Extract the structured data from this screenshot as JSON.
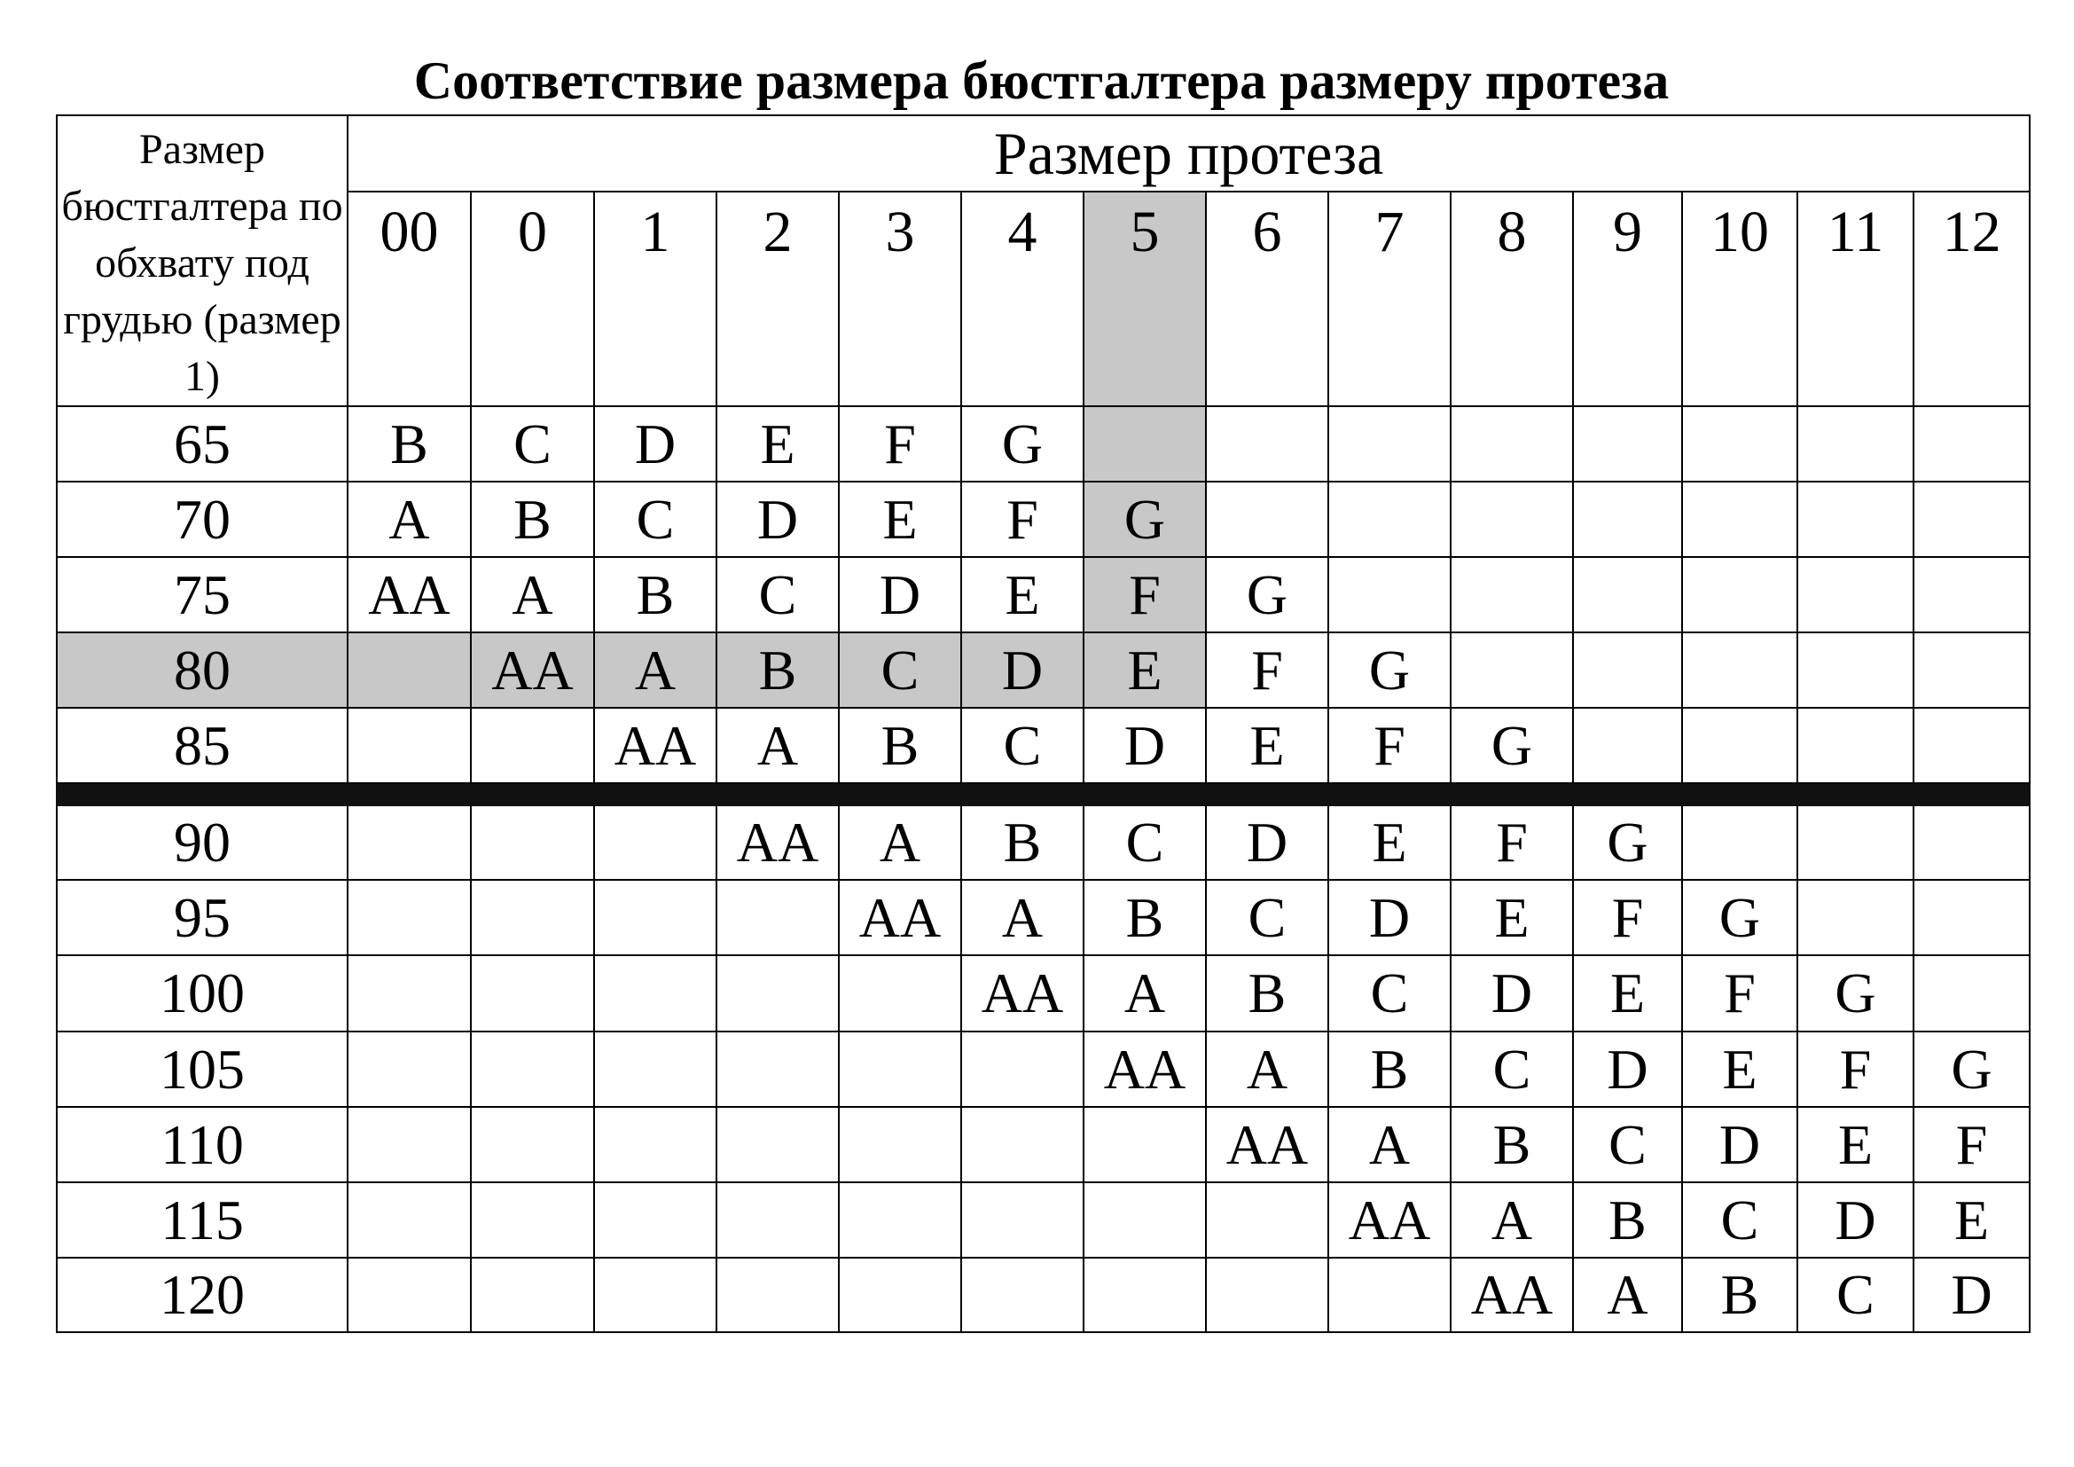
{
  "title": "Соответствие размера бюстгалтера размеру протеза",
  "table": {
    "corner_header": "Размер бюстгалтера по обхвату под грудью (размер 1)",
    "group_header": "Размер протеза",
    "columns": [
      "00",
      "0",
      "1",
      "2",
      "3",
      "4",
      "5",
      "6",
      "7",
      "8",
      "9",
      "10",
      "11",
      "12"
    ],
    "highlight_column": "5",
    "highlight_row": "80",
    "highlight_color": "#c8c8c8",
    "separator_after_row": "85",
    "rows": [
      {
        "size": "65",
        "cells": [
          "B",
          "C",
          "D",
          "E",
          "F",
          "G",
          "",
          "",
          "",
          "",
          "",
          "",
          "",
          ""
        ]
      },
      {
        "size": "70",
        "cells": [
          "A",
          "B",
          "C",
          "D",
          "E",
          "F",
          "G",
          "",
          "",
          "",
          "",
          "",
          "",
          ""
        ]
      },
      {
        "size": "75",
        "cells": [
          "AA",
          "A",
          "B",
          "C",
          "D",
          "E",
          "F",
          "G",
          "",
          "",
          "",
          "",
          "",
          ""
        ]
      },
      {
        "size": "80",
        "cells": [
          "",
          "AA",
          "A",
          "B",
          "C",
          "D",
          "E",
          "F",
          "G",
          "",
          "",
          "",
          "",
          ""
        ]
      },
      {
        "size": "85",
        "cells": [
          "",
          "",
          "AA",
          "A",
          "B",
          "C",
          "D",
          "E",
          "F",
          "G",
          "",
          "",
          "",
          ""
        ]
      },
      {
        "size": "90",
        "cells": [
          "",
          "",
          "",
          "AA",
          "A",
          "B",
          "C",
          "D",
          "E",
          "F",
          "G",
          "",
          "",
          ""
        ]
      },
      {
        "size": "95",
        "cells": [
          "",
          "",
          "",
          "",
          "AA",
          "A",
          "B",
          "C",
          "D",
          "E",
          "F",
          "G",
          "",
          ""
        ]
      },
      {
        "size": "100",
        "cells": [
          "",
          "",
          "",
          "",
          "",
          "AA",
          "A",
          "B",
          "C",
          "D",
          "E",
          "F",
          "G",
          ""
        ]
      },
      {
        "size": "105",
        "cells": [
          "",
          "",
          "",
          "",
          "",
          "",
          "AA",
          "A",
          "B",
          "C",
          "D",
          "E",
          "F",
          "G"
        ]
      },
      {
        "size": "110",
        "cells": [
          "",
          "",
          "",
          "",
          "",
          "",
          "",
          "AA",
          "A",
          "B",
          "C",
          "D",
          "E",
          "F"
        ]
      },
      {
        "size": "115",
        "cells": [
          "",
          "",
          "",
          "",
          "",
          "",
          "",
          "",
          "AA",
          "A",
          "B",
          "C",
          "D",
          "E"
        ]
      },
      {
        "size": "120",
        "cells": [
          "",
          "",
          "",
          "",
          "",
          "",
          "",
          "",
          "",
          "AA",
          "A",
          "B",
          "C",
          "D"
        ]
      }
    ]
  }
}
